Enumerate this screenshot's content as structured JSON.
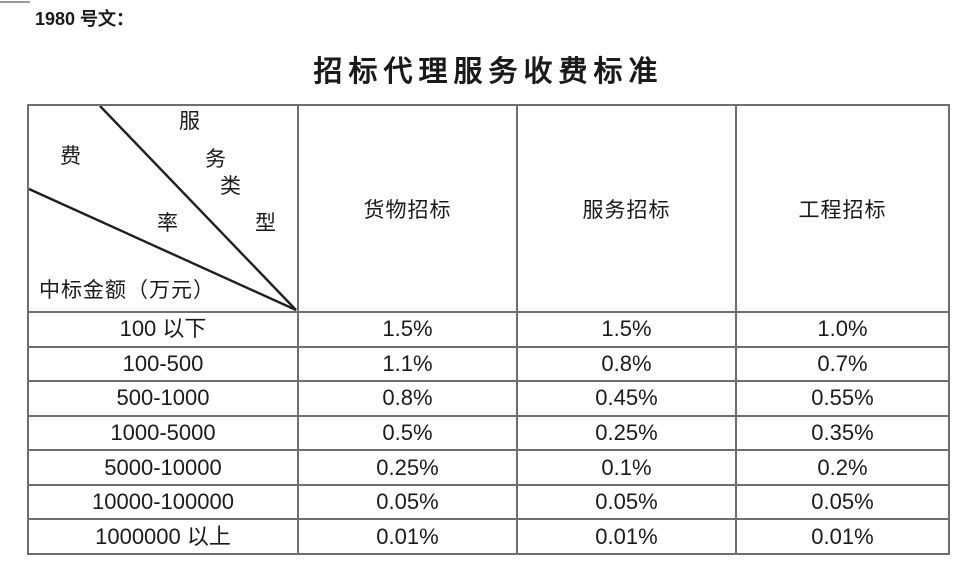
{
  "doc_label": "1980 号文：",
  "title": "招标代理服务收费标准",
  "table": {
    "corner": {
      "diag_label_chars": [
        "服",
        "务",
        "类",
        "型"
      ],
      "fee_label_chars": [
        "费",
        "率"
      ],
      "row_axis_label": "中标金额（万元）"
    },
    "columns": [
      "货物招标",
      "服务招标",
      "工程招标"
    ],
    "rows": [
      {
        "range": "100 以下",
        "goods": "1.5%",
        "service": "1.5%",
        "engineering": "1.0%"
      },
      {
        "range": "100-500",
        "goods": "1.1%",
        "service": "0.8%",
        "engineering": "0.7%"
      },
      {
        "range": "500-1000",
        "goods": "0.8%",
        "service": "0.45%",
        "engineering": "0.55%"
      },
      {
        "range": "1000-5000",
        "goods": "0.5%",
        "service": "0.25%",
        "engineering": "0.35%"
      },
      {
        "range": "5000-10000",
        "goods": "0.25%",
        "service": "0.1%",
        "engineering": "0.2%"
      },
      {
        "range": "10000-100000",
        "goods": "0.05%",
        "service": "0.05%",
        "engineering": "0.05%"
      },
      {
        "range": "1000000 以上",
        "goods": "0.01%",
        "service": "0.01%",
        "engineering": "0.01%"
      }
    ]
  },
  "colors": {
    "text": "#1a1a1a",
    "border": "#6e6e6e",
    "diagonal": "#1f1f1f",
    "background": "#ffffff"
  }
}
